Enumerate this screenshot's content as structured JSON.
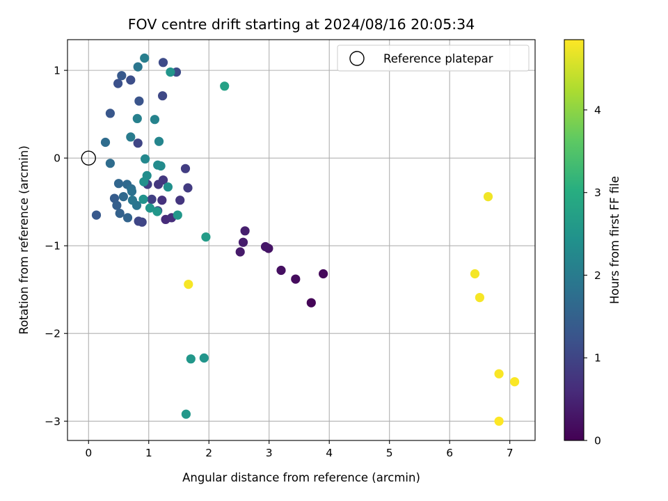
{
  "chart_data": {
    "type": "scatter",
    "title": "FOV centre drift starting at 2024/08/16 20:05:34",
    "xlabel": "Angular distance from reference (arcmin)",
    "ylabel": "Rotation from reference (arcmin)",
    "xlim": [
      -0.35,
      7.42
    ],
    "ylim": [
      -3.22,
      1.35
    ],
    "xticks": [
      0,
      1,
      2,
      3,
      4,
      5,
      6,
      7
    ],
    "yticks": [
      -3,
      -2,
      -1,
      0,
      1
    ],
    "xtick_labels": [
      "0",
      "1",
      "2",
      "3",
      "4",
      "5",
      "6",
      "7"
    ],
    "ytick_labels": [
      "−3",
      "−2",
      "−1",
      "0",
      "1"
    ],
    "grid": true,
    "colormap": "viridis",
    "colorbar": {
      "label": "Hours from first FF file",
      "range": [
        0,
        4.85
      ],
      "ticks": [
        0,
        1,
        2,
        3,
        4
      ],
      "tick_labels": [
        "0",
        "1",
        "2",
        "3",
        "4"
      ]
    },
    "legend": {
      "placement": "top-right",
      "entries": [
        "Reference platepar"
      ]
    },
    "reference_point": {
      "x": 0,
      "y": 0
    },
    "points": [
      {
        "x": 3.7,
        "y": -1.65,
        "t": 0.05
      },
      {
        "x": 3.9,
        "y": -1.32,
        "t": 0.1
      },
      {
        "x": 3.44,
        "y": -1.38,
        "t": 0.15
      },
      {
        "x": 3.2,
        "y": -1.28,
        "t": 0.2
      },
      {
        "x": 2.99,
        "y": -1.03,
        "t": 0.25
      },
      {
        "x": 2.94,
        "y": -1.01,
        "t": 0.3
      },
      {
        "x": 2.52,
        "y": -1.07,
        "t": 0.35
      },
      {
        "x": 2.57,
        "y": -0.96,
        "t": 0.38
      },
      {
        "x": 2.6,
        "y": -0.83,
        "t": 0.42
      },
      {
        "x": 1.28,
        "y": -0.7,
        "t": 0.6
      },
      {
        "x": 1.38,
        "y": -0.68,
        "t": 0.65
      },
      {
        "x": 1.22,
        "y": -0.48,
        "t": 0.7
      },
      {
        "x": 1.52,
        "y": -0.48,
        "t": 0.75
      },
      {
        "x": 1.16,
        "y": -0.3,
        "t": 0.78
      },
      {
        "x": 1.24,
        "y": -0.25,
        "t": 0.8
      },
      {
        "x": 1.65,
        "y": -0.34,
        "t": 0.85
      },
      {
        "x": 1.61,
        "y": -0.12,
        "t": 0.88
      },
      {
        "x": 0.98,
        "y": -0.3,
        "t": 0.9
      },
      {
        "x": 1.05,
        "y": -0.47,
        "t": 0.92
      },
      {
        "x": 1.15,
        "y": -0.6,
        "t": 0.95
      },
      {
        "x": 0.89,
        "y": -0.73,
        "t": 1.0
      },
      {
        "x": 0.83,
        "y": -0.72,
        "t": 1.02
      },
      {
        "x": 0.82,
        "y": 0.17,
        "t": 1.0
      },
      {
        "x": 1.23,
        "y": 0.71,
        "t": 1.05
      },
      {
        "x": 1.46,
        "y": 0.98,
        "t": 1.1
      },
      {
        "x": 1.24,
        "y": 1.09,
        "t": 1.1
      },
      {
        "x": 0.7,
        "y": 0.89,
        "t": 1.15
      },
      {
        "x": 0.49,
        "y": 0.85,
        "t": 1.2
      },
      {
        "x": 0.84,
        "y": 0.65,
        "t": 1.25
      },
      {
        "x": 0.36,
        "y": 0.51,
        "t": 1.3
      },
      {
        "x": 0.55,
        "y": 0.94,
        "t": 1.35
      },
      {
        "x": 0.13,
        "y": -0.65,
        "t": 1.35
      },
      {
        "x": 0.43,
        "y": -0.46,
        "t": 1.4
      },
      {
        "x": 0.47,
        "y": -0.54,
        "t": 1.45
      },
      {
        "x": 0.52,
        "y": -0.63,
        "t": 1.5
      },
      {
        "x": 0.65,
        "y": -0.68,
        "t": 1.55
      },
      {
        "x": 0.5,
        "y": -0.29,
        "t": 1.6
      },
      {
        "x": 0.58,
        "y": -0.44,
        "t": 1.65
      },
      {
        "x": 0.64,
        "y": -0.3,
        "t": 1.65
      },
      {
        "x": 0.28,
        "y": 0.18,
        "t": 1.7
      },
      {
        "x": 0.36,
        "y": -0.06,
        "t": 1.7
      },
      {
        "x": 0.71,
        "y": -0.35,
        "t": 1.75
      },
      {
        "x": 0.72,
        "y": -0.38,
        "t": 1.8
      },
      {
        "x": 0.8,
        "y": -0.54,
        "t": 1.85
      },
      {
        "x": 0.73,
        "y": -0.48,
        "t": 1.9
      },
      {
        "x": 0.82,
        "y": 1.04,
        "t": 1.9
      },
      {
        "x": 0.7,
        "y": 0.24,
        "t": 2.0
      },
      {
        "x": 0.93,
        "y": 1.14,
        "t": 2.05
      },
      {
        "x": 0.81,
        "y": 0.45,
        "t": 2.1
      },
      {
        "x": 1.1,
        "y": 0.44,
        "t": 2.15
      },
      {
        "x": 1.17,
        "y": 0.19,
        "t": 2.2
      },
      {
        "x": 0.94,
        "y": -0.01,
        "t": 2.25
      },
      {
        "x": 1.15,
        "y": -0.08,
        "t": 2.3
      },
      {
        "x": 1.2,
        "y": -0.09,
        "t": 2.3
      },
      {
        "x": 0.97,
        "y": -0.2,
        "t": 2.35
      },
      {
        "x": 0.92,
        "y": -0.27,
        "t": 2.4
      },
      {
        "x": 1.32,
        "y": -0.33,
        "t": 2.4
      },
      {
        "x": 0.91,
        "y": -0.47,
        "t": 2.45
      },
      {
        "x": 1.02,
        "y": -0.57,
        "t": 2.5
      },
      {
        "x": 1.14,
        "y": -0.61,
        "t": 2.55
      },
      {
        "x": 1.48,
        "y": -0.65,
        "t": 2.55
      },
      {
        "x": 1.36,
        "y": 0.98,
        "t": 2.5
      },
      {
        "x": 2.26,
        "y": 0.82,
        "t": 2.75
      },
      {
        "x": 1.95,
        "y": -0.9,
        "t": 2.65
      },
      {
        "x": 1.92,
        "y": -2.28,
        "t": 2.5
      },
      {
        "x": 1.7,
        "y": -2.29,
        "t": 2.55
      },
      {
        "x": 1.62,
        "y": -2.92,
        "t": 2.55
      },
      {
        "x": 1.66,
        "y": -1.44,
        "t": 4.8
      },
      {
        "x": 6.64,
        "y": -0.44,
        "t": 4.75
      },
      {
        "x": 6.42,
        "y": -1.32,
        "t": 4.78
      },
      {
        "x": 6.5,
        "y": -1.59,
        "t": 4.8
      },
      {
        "x": 6.82,
        "y": -2.46,
        "t": 4.82
      },
      {
        "x": 7.08,
        "y": -2.55,
        "t": 4.83
      },
      {
        "x": 6.82,
        "y": -3.0,
        "t": 4.85
      }
    ]
  }
}
